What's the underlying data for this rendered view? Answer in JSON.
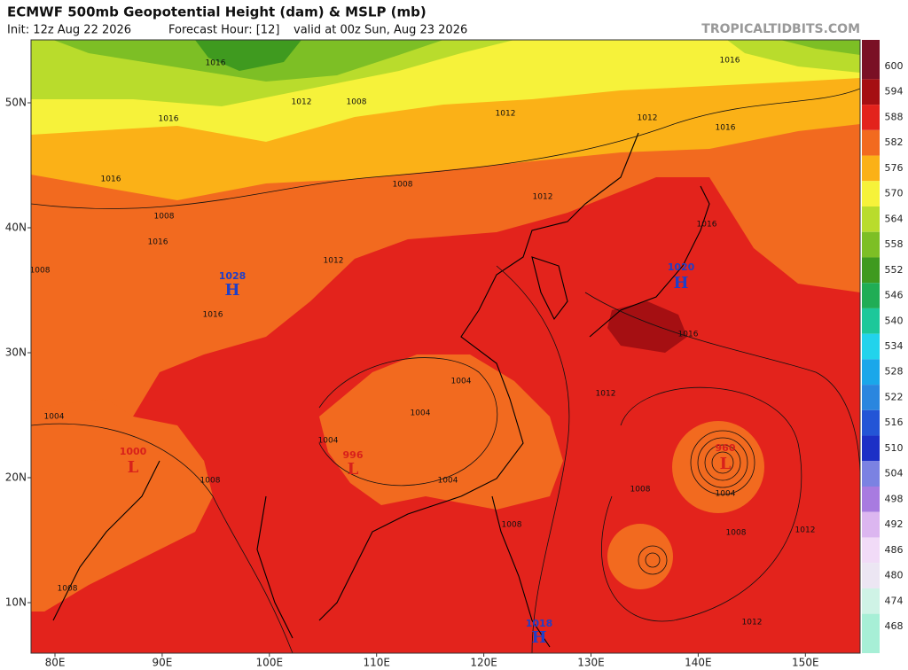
{
  "header": {
    "title": "ECMWF 500mb Geopotential Height (dam) & MSLP (mb)",
    "init": "Init: 12z Aug 22 2026",
    "forecast_hour": "Forecast Hour: [12]",
    "valid": "valid at 00z Sun, Aug 23 2026",
    "source": "TROPICALTIDBITS.COM"
  },
  "map": {
    "lat_labels": [
      {
        "value": 50,
        "label": "50N"
      },
      {
        "value": 40,
        "label": "40N"
      },
      {
        "value": 30,
        "label": "30N"
      },
      {
        "value": 20,
        "label": "20N"
      },
      {
        "value": 10,
        "label": "10N"
      }
    ],
    "lon_labels": [
      {
        "value": 80,
        "label": "80E"
      },
      {
        "value": 90,
        "label": "90E"
      },
      {
        "value": 100,
        "label": "100E"
      },
      {
        "value": 110,
        "label": "110E"
      },
      {
        "value": 120,
        "label": "120E"
      },
      {
        "value": 130,
        "label": "130E"
      },
      {
        "value": 140,
        "label": "140E"
      },
      {
        "value": 150,
        "label": "150E"
      }
    ],
    "pressure_centers": [
      {
        "symbol": "H",
        "value": 1028
      },
      {
        "symbol": "H",
        "value": 1020
      },
      {
        "symbol": "H",
        "value": 1018
      },
      {
        "symbol": "L",
        "value": 1000
      },
      {
        "symbol": "L",
        "value": 996
      },
      {
        "symbol": "L",
        "value": 960
      }
    ],
    "isobar_labels": [
      1016,
      1016,
      1016,
      1016,
      1016,
      1016,
      1016,
      1016,
      1016,
      1012,
      1012,
      1012,
      1012,
      1012,
      1012,
      1012,
      1012,
      1008,
      1008,
      1008,
      1008,
      1008,
      1008,
      1008,
      1008,
      1008,
      1004,
      1004,
      1004,
      1004,
      1004,
      1004
    ]
  },
  "colorbar": {
    "levels": [
      600,
      594,
      588,
      582,
      576,
      570,
      564,
      558,
      552,
      546,
      540,
      534,
      528,
      522,
      516,
      510,
      504,
      498,
      492,
      486,
      480,
      474,
      468
    ],
    "colors": [
      "#7a1025",
      "#a50f12",
      "#e3231c",
      "#f26a1f",
      "#fbb117",
      "#f6f23a",
      "#b9dc2c",
      "#7dbf25",
      "#3f9a1f",
      "#20ad55",
      "#1cc89a",
      "#22d3ec",
      "#1aa7ea",
      "#2a86df",
      "#2355d6",
      "#1c30c6",
      "#7b82e2",
      "#a87be0",
      "#dcb6f0",
      "#f1dbf7",
      "#ece6f3",
      "#cff3e6",
      "#a7efd6"
    ]
  }
}
